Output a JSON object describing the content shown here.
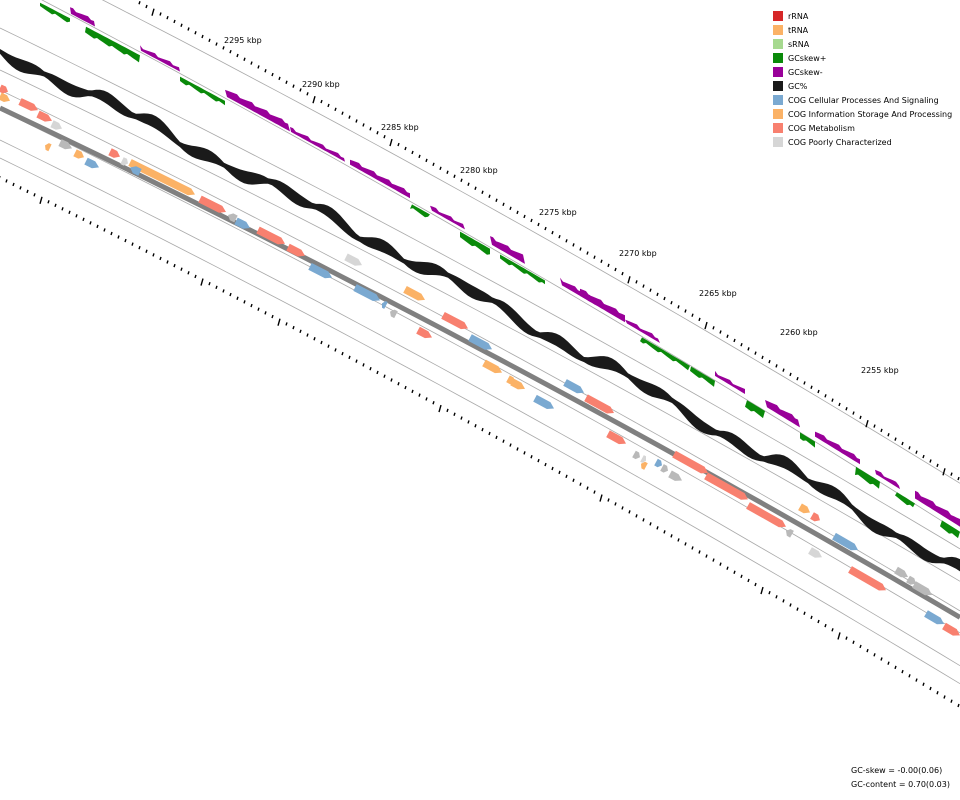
{
  "colors": {
    "background": "#ffffff",
    "rRNA": "#d62728",
    "tRNA": "#fbb266",
    "sRNA": "#a6d98f",
    "gcskew_pos": "#0a8a0a",
    "gcskew_neg": "#990099",
    "gc_content": "#1a1a1a",
    "cog_cellular": "#7aa9d1",
    "cog_information": "#fbb266",
    "cog_metabolism": "#f8806f",
    "cog_poorly": "#d6d6d6",
    "cog_unassigned": "#b9b9b9",
    "backbone": "#808080",
    "track_lines": "#a9a9a9",
    "ticks": "#000000"
  },
  "legend": [
    {
      "label": "rRNA",
      "color": "#d62728"
    },
    {
      "label": "tRNA",
      "color": "#fbb266"
    },
    {
      "label": "sRNA",
      "color": "#a6d98f"
    },
    {
      "label": "GCskew+",
      "color": "#0a8a0a"
    },
    {
      "label": "GCskew-",
      "color": "#990099"
    },
    {
      "label": "GC%",
      "color": "#1a1a1a"
    },
    {
      "label": "COG Cellular Processes And Signaling",
      "color": "#7aa9d1"
    },
    {
      "label": "COG Information Storage And Processing",
      "color": "#fbb266"
    },
    {
      "label": "COG Metabolism",
      "color": "#f8806f"
    },
    {
      "label": "COG Poorly Characterized",
      "color": "#d6d6d6"
    }
  ],
  "axis_labels": [
    "2295 kbp",
    "2290 kbp",
    "2285 kbp",
    "2280 kbp",
    "2275 kbp",
    "2270 kbp",
    "2265 kbp",
    "2260 kbp",
    "2255 kbp"
  ],
  "stats": {
    "gc_skew": "GC-skew = -0.00(0.06)",
    "gc_content": "GC-content = 0.70(0.03)"
  }
}
